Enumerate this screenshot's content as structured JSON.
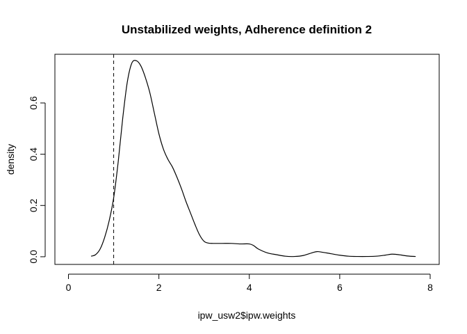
{
  "chart_data": {
    "type": "line",
    "title": "Unstabilized weights, Adherence definition 2",
    "xlabel": "ipw_usw2$ipw.weights",
    "ylabel": "density",
    "xlim": [
      -0.3,
      8.2
    ],
    "ylim": [
      -0.03,
      0.79
    ],
    "x_ticks": [
      "0",
      "2",
      "4",
      "6",
      "8"
    ],
    "x_tick_values": [
      0,
      2,
      4,
      6,
      8
    ],
    "y_ticks": [
      "0.0",
      "0.2",
      "0.4",
      "0.6"
    ],
    "y_tick_values": [
      0.0,
      0.2,
      0.4,
      0.6
    ],
    "grid": false,
    "legend": "none",
    "reference_line": {
      "x": 1.0,
      "style": "dashed"
    },
    "series": [
      {
        "color": "#000000",
        "x": [
          0.5,
          0.6,
          0.7,
          0.8,
          0.9,
          1.0,
          1.1,
          1.2,
          1.3,
          1.4,
          1.5,
          1.6,
          1.7,
          1.8,
          1.9,
          2.0,
          2.1,
          2.2,
          2.3,
          2.4,
          2.5,
          2.6,
          2.7,
          2.8,
          2.9,
          3.0,
          3.1,
          3.2,
          3.4,
          3.6,
          3.8,
          4.0,
          4.1,
          4.2,
          4.4,
          4.6,
          4.8,
          5.0,
          5.2,
          5.4,
          5.5,
          5.6,
          5.8,
          6.0,
          6.2,
          6.4,
          6.6,
          6.8,
          7.0,
          7.15,
          7.3,
          7.5,
          7.68
        ],
        "y": [
          0.002,
          0.008,
          0.03,
          0.075,
          0.14,
          0.23,
          0.37,
          0.54,
          0.68,
          0.755,
          0.765,
          0.745,
          0.7,
          0.64,
          0.56,
          0.48,
          0.42,
          0.38,
          0.35,
          0.31,
          0.265,
          0.215,
          0.17,
          0.125,
          0.085,
          0.06,
          0.053,
          0.052,
          0.052,
          0.052,
          0.05,
          0.05,
          0.043,
          0.03,
          0.015,
          0.008,
          0.002,
          0.001,
          0.005,
          0.016,
          0.02,
          0.018,
          0.012,
          0.006,
          0.002,
          0.001,
          0.001,
          0.002,
          0.006,
          0.01,
          0.008,
          0.003,
          0.001
        ]
      }
    ]
  }
}
